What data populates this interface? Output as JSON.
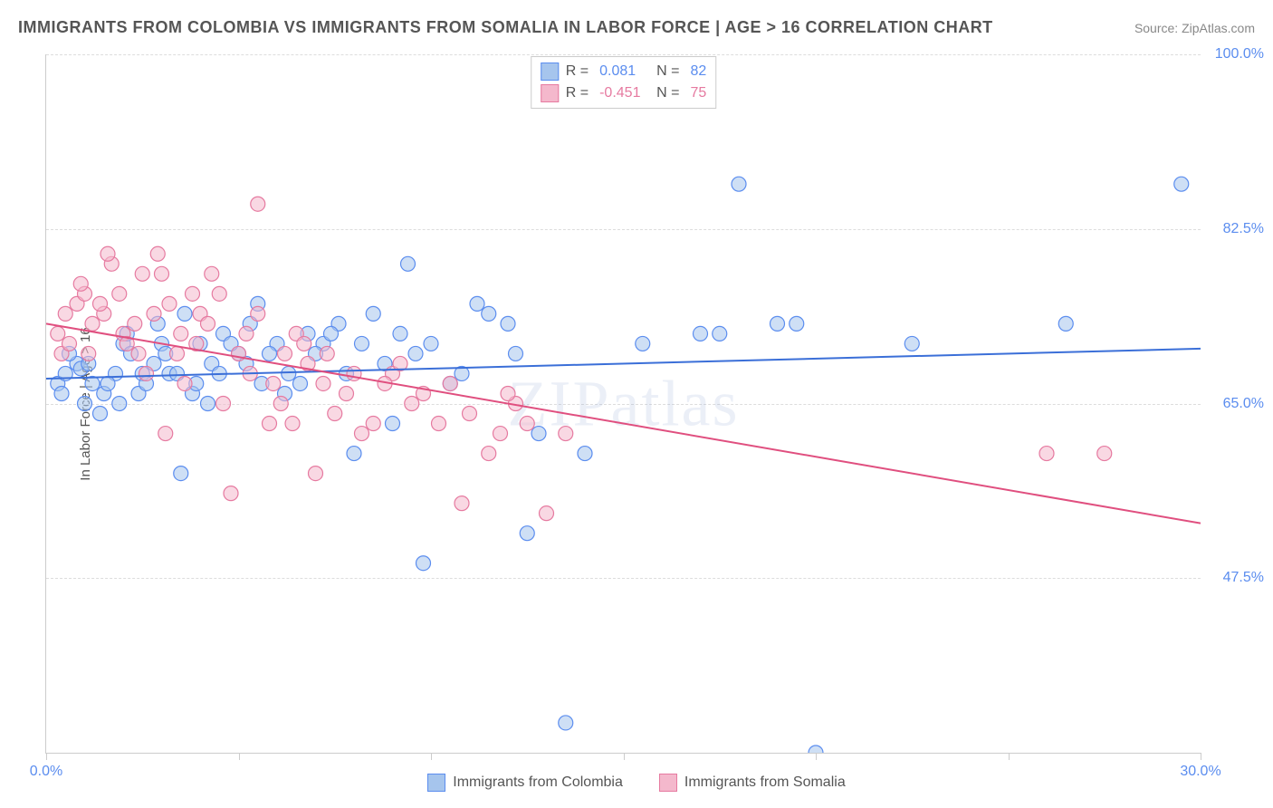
{
  "title": "IMMIGRANTS FROM COLOMBIA VS IMMIGRANTS FROM SOMALIA IN LABOR FORCE | AGE > 16 CORRELATION CHART",
  "source": "Source: ZipAtlas.com",
  "watermark": "ZIPatlas",
  "yAxisLabel": "In Labor Force | Age > 16",
  "chart": {
    "type": "scatter",
    "xlim": [
      0,
      30
    ],
    "ylim": [
      30,
      100
    ],
    "xticks": [
      0,
      5,
      10,
      15,
      20,
      25,
      30
    ],
    "xtick_labels": {
      "0": "0.0%",
      "30": "30.0%"
    },
    "yticks": [
      47.5,
      65.0,
      82.5,
      100.0
    ],
    "ytick_labels": [
      "47.5%",
      "65.0%",
      "82.5%",
      "100.0%"
    ],
    "background_color": "#ffffff",
    "grid_color": "#dddddd",
    "marker_radius": 8,
    "marker_opacity": 0.55,
    "line_width": 2,
    "series": [
      {
        "name": "Immigrants from Colombia",
        "color_fill": "#a6c5ed",
        "color_stroke": "#5b8def",
        "line_color": "#3b6fd8",
        "R": "0.081",
        "N": "82",
        "trend": {
          "x1": 0,
          "y1": 67.5,
          "x2": 30,
          "y2": 70.5
        },
        "points": [
          [
            0.3,
            67
          ],
          [
            0.5,
            68
          ],
          [
            0.4,
            66
          ],
          [
            0.8,
            69
          ],
          [
            1.0,
            65
          ],
          [
            0.6,
            70
          ],
          [
            1.2,
            67
          ],
          [
            0.9,
            68.5
          ],
          [
            1.5,
            66
          ],
          [
            1.1,
            69
          ],
          [
            1.8,
            68
          ],
          [
            1.4,
            64
          ],
          [
            2.0,
            71
          ],
          [
            1.6,
            67
          ],
          [
            2.2,
            70
          ],
          [
            1.9,
            65
          ],
          [
            2.5,
            68
          ],
          [
            2.1,
            72
          ],
          [
            2.8,
            69
          ],
          [
            2.4,
            66
          ],
          [
            3.0,
            71
          ],
          [
            2.6,
            67
          ],
          [
            3.2,
            68
          ],
          [
            2.9,
            73
          ],
          [
            3.5,
            58
          ],
          [
            3.1,
            70
          ],
          [
            3.8,
            66
          ],
          [
            3.4,
            68
          ],
          [
            4.0,
            71
          ],
          [
            3.6,
            74
          ],
          [
            4.3,
            69
          ],
          [
            3.9,
            67
          ],
          [
            4.6,
            72
          ],
          [
            4.2,
            65
          ],
          [
            5.0,
            70
          ],
          [
            4.5,
            68
          ],
          [
            5.3,
            73
          ],
          [
            4.8,
            71
          ],
          [
            5.6,
            67
          ],
          [
            5.2,
            69
          ],
          [
            6.0,
            71
          ],
          [
            5.5,
            75
          ],
          [
            6.3,
            68
          ],
          [
            5.8,
            70
          ],
          [
            6.8,
            72
          ],
          [
            6.2,
            66
          ],
          [
            7.2,
            71
          ],
          [
            6.6,
            67
          ],
          [
            7.6,
            73
          ],
          [
            7.0,
            70
          ],
          [
            8.0,
            60
          ],
          [
            7.4,
            72
          ],
          [
            8.5,
            74
          ],
          [
            7.8,
            68
          ],
          [
            9.0,
            63
          ],
          [
            8.2,
            71
          ],
          [
            9.4,
            79
          ],
          [
            8.8,
            69
          ],
          [
            9.8,
            49
          ],
          [
            9.2,
            72
          ],
          [
            10.5,
            67
          ],
          [
            9.6,
            70
          ],
          [
            11.2,
            75
          ],
          [
            10.0,
            71
          ],
          [
            12.0,
            73
          ],
          [
            10.8,
            68
          ],
          [
            12.8,
            62
          ],
          [
            11.5,
            74
          ],
          [
            13.5,
            33
          ],
          [
            12.2,
            70
          ],
          [
            14.0,
            60
          ],
          [
            12.5,
            52
          ],
          [
            15.5,
            71
          ],
          [
            18.0,
            87
          ],
          [
            17.0,
            72
          ],
          [
            19.5,
            73
          ],
          [
            20.0,
            30
          ],
          [
            22.5,
            71
          ],
          [
            26.5,
            73
          ],
          [
            29.5,
            87
          ],
          [
            17.5,
            72
          ],
          [
            19.0,
            73
          ]
        ]
      },
      {
        "name": "Immigrants from Somalia",
        "color_fill": "#f4b8cc",
        "color_stroke": "#e67aa0",
        "line_color": "#e04f7f",
        "R": "-0.451",
        "N": "75",
        "trend": {
          "x1": 0,
          "y1": 73,
          "x2": 30,
          "y2": 53
        },
        "points": [
          [
            0.3,
            72
          ],
          [
            0.5,
            74
          ],
          [
            0.4,
            70
          ],
          [
            0.8,
            75
          ],
          [
            1.0,
            76
          ],
          [
            0.6,
            71
          ],
          [
            1.2,
            73
          ],
          [
            0.9,
            77
          ],
          [
            1.5,
            74
          ],
          [
            1.1,
            70
          ],
          [
            1.7,
            79
          ],
          [
            1.4,
            75
          ],
          [
            2.0,
            72
          ],
          [
            1.6,
            80
          ],
          [
            2.3,
            73
          ],
          [
            1.9,
            76
          ],
          [
            2.5,
            78
          ],
          [
            2.1,
            71
          ],
          [
            2.8,
            74
          ],
          [
            2.4,
            70
          ],
          [
            3.0,
            78
          ],
          [
            2.6,
            68
          ],
          [
            3.2,
            75
          ],
          [
            2.9,
            80
          ],
          [
            3.5,
            72
          ],
          [
            3.1,
            62
          ],
          [
            3.8,
            76
          ],
          [
            3.4,
            70
          ],
          [
            4.0,
            74
          ],
          [
            3.6,
            67
          ],
          [
            4.3,
            78
          ],
          [
            3.9,
            71
          ],
          [
            4.6,
            65
          ],
          [
            4.2,
            73
          ],
          [
            5.0,
            70
          ],
          [
            4.5,
            76
          ],
          [
            5.3,
            68
          ],
          [
            4.8,
            56
          ],
          [
            5.5,
            85
          ],
          [
            5.2,
            72
          ],
          [
            5.8,
            63
          ],
          [
            5.5,
            74
          ],
          [
            6.2,
            70
          ],
          [
            5.9,
            67
          ],
          [
            6.5,
            72
          ],
          [
            6.1,
            65
          ],
          [
            6.8,
            69
          ],
          [
            6.4,
            63
          ],
          [
            7.2,
            67
          ],
          [
            6.7,
            71
          ],
          [
            7.5,
            64
          ],
          [
            7.0,
            58
          ],
          [
            8.0,
            68
          ],
          [
            7.3,
            70
          ],
          [
            8.5,
            63
          ],
          [
            7.8,
            66
          ],
          [
            9.0,
            68
          ],
          [
            8.2,
            62
          ],
          [
            9.5,
            65
          ],
          [
            8.8,
            67
          ],
          [
            10.2,
            63
          ],
          [
            9.2,
            69
          ],
          [
            11.0,
            64
          ],
          [
            9.8,
            66
          ],
          [
            11.8,
            62
          ],
          [
            10.5,
            67
          ],
          [
            12.2,
            65
          ],
          [
            10.8,
            55
          ],
          [
            12.5,
            63
          ],
          [
            11.5,
            60
          ],
          [
            13.0,
            54
          ],
          [
            12.0,
            66
          ],
          [
            13.5,
            62
          ],
          [
            26.0,
            60
          ],
          [
            27.5,
            60
          ]
        ]
      }
    ]
  },
  "legendTop": {
    "rows": [
      {
        "swatch_fill": "#a6c5ed",
        "swatch_stroke": "#5b8def",
        "r_label": "R =",
        "r_val": "0.081",
        "n_label": "N =",
        "n_val": "82",
        "val_class": "blue"
      },
      {
        "swatch_fill": "#f4b8cc",
        "swatch_stroke": "#e67aa0",
        "r_label": "R =",
        "r_val": "-0.451",
        "n_label": "N =",
        "n_val": "75",
        "val_class": "pink"
      }
    ]
  },
  "legendBottom": [
    {
      "swatch_fill": "#a6c5ed",
      "swatch_stroke": "#5b8def",
      "label": "Immigrants from Colombia"
    },
    {
      "swatch_fill": "#f4b8cc",
      "swatch_stroke": "#e67aa0",
      "label": "Immigrants from Somalia"
    }
  ]
}
